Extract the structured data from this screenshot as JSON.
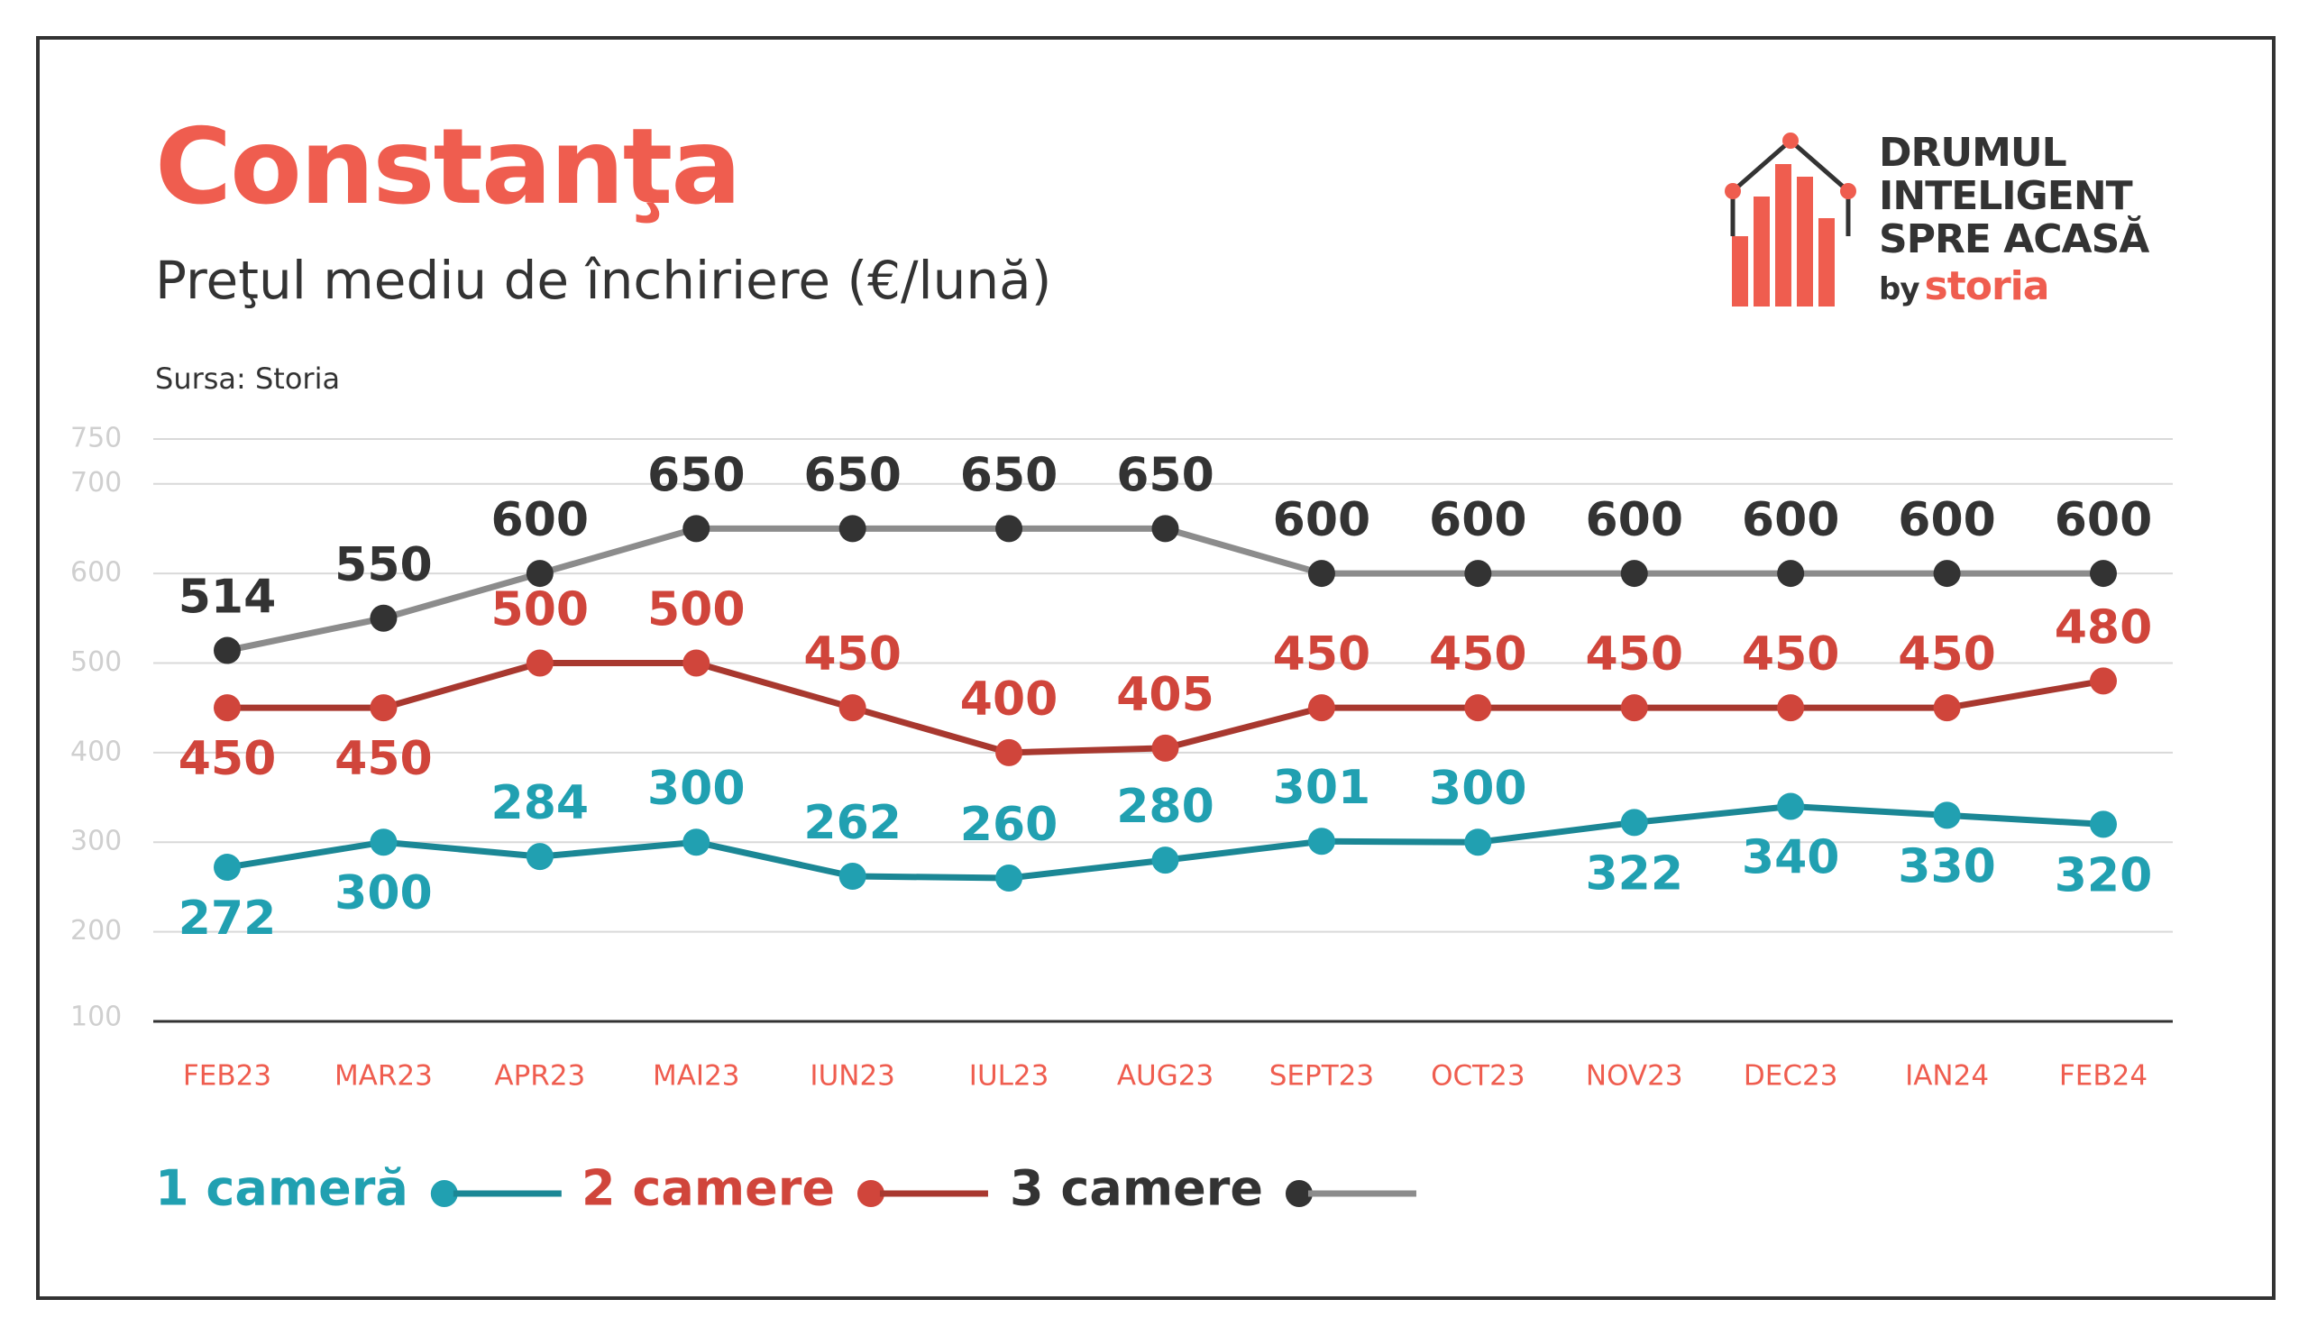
{
  "page": {
    "title": "Constanţa",
    "subtitle": "Preţul mediu de închiriere (€/lună)",
    "source": "Sursa: Storia",
    "logo": {
      "lines": [
        "DRUMUL",
        "INTELIGENT",
        "SPRE ACASĂ"
      ],
      "by": "by",
      "brand": "storia"
    }
  },
  "colors": {
    "title": "#ef5d4f",
    "text": "#333333",
    "axis_labels": "#ef5d4f",
    "grid": "#d9d9d9",
    "y_ticks": "#cfcfcf"
  },
  "chart_data": {
    "type": "line",
    "categories": [
      "FEB23",
      "MAR23",
      "APR23",
      "MAI23",
      "IUN23",
      "IUL23",
      "AUG23",
      "SEPT23",
      "OCT23",
      "NOV23",
      "DEC23",
      "IAN24",
      "FEB24"
    ],
    "ylim": [
      100,
      750
    ],
    "y_ticks": [
      100,
      200,
      300,
      400,
      500,
      600,
      700,
      750
    ],
    "grid": true,
    "legend_position": "bottom-left",
    "series": [
      {
        "name": "1 cameră",
        "color": "#21a0b1",
        "line_color": "#1b8795",
        "values": [
          272,
          300,
          284,
          300,
          262,
          260,
          280,
          301,
          300,
          322,
          340,
          330,
          320
        ],
        "labels": [
          "272",
          "300",
          "284",
          "300",
          "262",
          "260",
          "280",
          "301",
          "300",
          "322",
          "340",
          "330",
          "320"
        ]
      },
      {
        "name": "2 camere",
        "color": "#d0453b",
        "line_color": "#a8382f",
        "values": [
          450,
          450,
          500,
          500,
          450,
          400,
          405,
          450,
          450,
          450,
          450,
          450,
          480
        ],
        "labels": [
          "450",
          "450",
          "500",
          "500",
          "450",
          "400",
          "405",
          "450",
          "450",
          "450",
          "450",
          "450",
          "480"
        ]
      },
      {
        "name": "3 camere",
        "color": "#333333",
        "line_color": "#8c8c8c",
        "values": [
          514,
          550,
          600,
          650,
          650,
          650,
          650,
          600,
          600,
          600,
          600,
          600,
          600
        ],
        "labels": [
          "514",
          "550",
          "600",
          "650",
          "650",
          "650",
          "650",
          "600",
          "600",
          "600",
          "600",
          "600",
          "600"
        ]
      }
    ]
  }
}
